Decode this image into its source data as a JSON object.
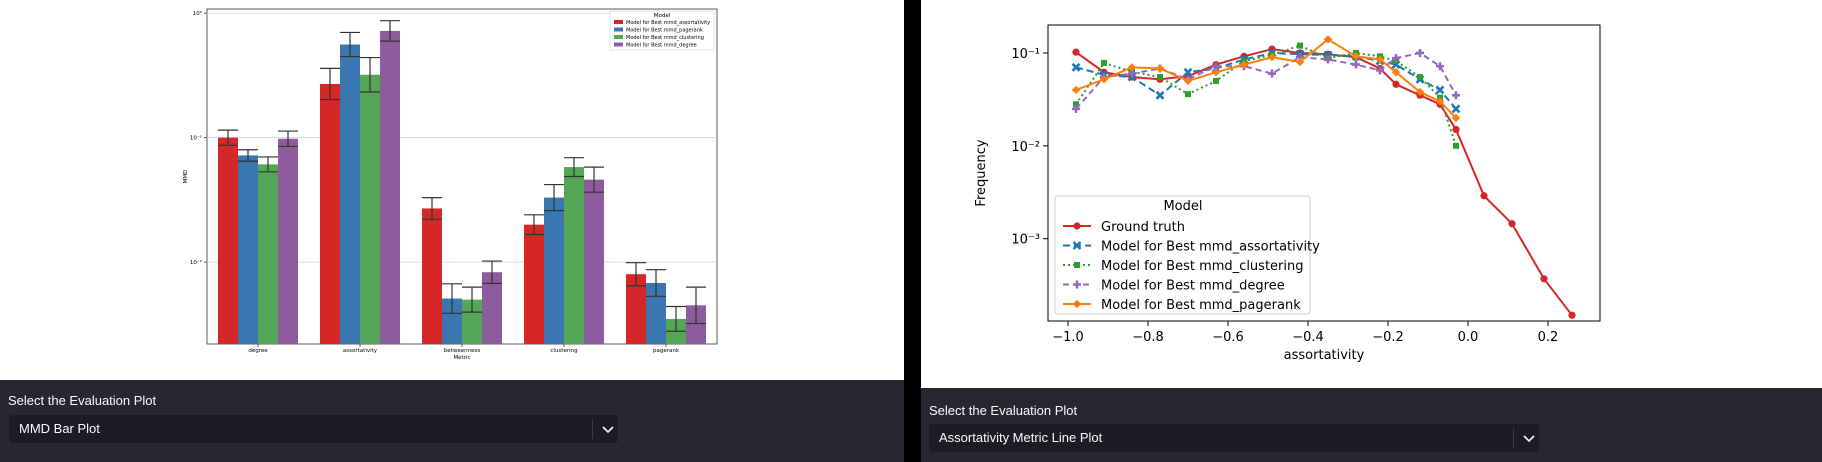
{
  "left_panel": {
    "select_label": "Select the Evaluation Plot",
    "select_value": "MMD Bar Plot"
  },
  "right_panel": {
    "select_label": "Select the Evaluation Plot",
    "select_value": "Assortativity Metric Line Plot"
  },
  "colors": {
    "background": "#262730",
    "select_bg": "#1b1c24",
    "text": "#fafafa",
    "red": "#d62728",
    "blue": "#1f77b4",
    "green": "#2ca02c",
    "purple": "#9467bd",
    "orange": "#ff7f0e"
  },
  "chart_data": [
    {
      "type": "bar",
      "scale": "log",
      "xlabel": "Metric",
      "ylabel": "MMD",
      "categories": [
        "degree",
        "assortativity",
        "betweenness",
        "clustering",
        "pagerank"
      ],
      "yticks": [
        {
          "label": "10⁻²",
          "value": 0.01
        },
        {
          "label": "10⁻¹",
          "value": 0.1
        },
        {
          "label": "10⁰",
          "value": 1
        }
      ],
      "legend": {
        "title": "Model",
        "position": "top-right"
      },
      "series": [
        {
          "name": "Model for Best mmd_assortativity",
          "color": "#d62728",
          "values": [
            0.1,
            0.27,
            0.027,
            0.02,
            0.008
          ],
          "errors": [
            0.115,
            0.36,
            0.033,
            0.024,
            0.0099
          ]
        },
        {
          "name": "Model for Best mmd_pagerank",
          "color": "#3a77b0",
          "values": [
            0.072,
            0.56,
            0.0051,
            0.033,
            0.0068
          ],
          "errors": [
            0.08,
            0.7,
            0.0067,
            0.042,
            0.0087
          ]
        },
        {
          "name": "Model for Best mmd_clustering",
          "color": "#55a657",
          "values": [
            0.061,
            0.32,
            0.005,
            0.058,
            0.0035
          ],
          "errors": [
            0.07,
            0.44,
            0.0063,
            0.069,
            0.0044
          ]
        },
        {
          "name": "Model for Best mmd_degree",
          "color": "#8e5b9e",
          "values": [
            0.098,
            0.72,
            0.0083,
            0.046,
            0.0045
          ],
          "errors": [
            0.113,
            0.87,
            0.0102,
            0.058,
            0.0063
          ]
        }
      ]
    },
    {
      "type": "line",
      "scale": "log-y",
      "xlabel": "assortativity",
      "ylabel": "Frequency",
      "xlim": [
        -1.05,
        0.33
      ],
      "xticks": [
        {
          "label": "−1.0",
          "value": -1.0
        },
        {
          "label": "−0.8",
          "value": -0.8
        },
        {
          "label": "−0.6",
          "value": -0.6
        },
        {
          "label": "−0.4",
          "value": -0.4
        },
        {
          "label": "−0.2",
          "value": -0.2
        },
        {
          "label": "0.0",
          "value": 0.0
        },
        {
          "label": "0.2",
          "value": 0.2
        }
      ],
      "yticks": [
        {
          "label": "10⁻¹",
          "value": 0.1
        },
        {
          "label": "10⁻²",
          "value": 0.01
        },
        {
          "label": "10⁻³",
          "value": 0.001
        }
      ],
      "legend": {
        "title": "Model",
        "position": "lower-left"
      },
      "series": [
        {
          "name": "Ground truth",
          "color": "#d62728",
          "marker": "circle",
          "dash": "",
          "points": [
            [
              -0.98,
              0.102
            ],
            [
              -0.91,
              0.062
            ],
            [
              -0.84,
              0.055
            ],
            [
              -0.77,
              0.052
            ],
            [
              -0.7,
              0.056
            ],
            [
              -0.63,
              0.075
            ],
            [
              -0.56,
              0.092
            ],
            [
              -0.49,
              0.11
            ],
            [
              -0.42,
              0.1
            ],
            [
              -0.35,
              0.097
            ],
            [
              -0.28,
              0.09
            ],
            [
              -0.22,
              0.068
            ],
            [
              -0.18,
              0.046
            ],
            [
              -0.12,
              0.035
            ],
            [
              -0.07,
              0.028
            ],
            [
              -0.03,
              0.015
            ],
            [
              0.04,
              0.0029
            ],
            [
              0.11,
              0.00145
            ],
            [
              0.19,
              0.00037
            ],
            [
              0.26,
              0.00015
            ]
          ]
        },
        {
          "name": "Model for Best mmd_assortativity",
          "color": "#1f77b4",
          "marker": "x",
          "dash": "7,4",
          "points": [
            [
              -0.98,
              0.07
            ],
            [
              -0.91,
              0.058
            ],
            [
              -0.84,
              0.055
            ],
            [
              -0.77,
              0.035
            ],
            [
              -0.7,
              0.062
            ],
            [
              -0.63,
              0.068
            ],
            [
              -0.56,
              0.085
            ],
            [
              -0.49,
              0.1
            ],
            [
              -0.42,
              0.097
            ],
            [
              -0.35,
              0.095
            ],
            [
              -0.28,
              0.092
            ],
            [
              -0.22,
              0.082
            ],
            [
              -0.18,
              0.075
            ],
            [
              -0.12,
              0.052
            ],
            [
              -0.07,
              0.04
            ],
            [
              -0.03,
              0.025
            ]
          ]
        },
        {
          "name": "Model for Best mmd_clustering",
          "color": "#2ca02c",
          "marker": "square",
          "dash": "2,3",
          "points": [
            [
              -0.98,
              0.028
            ],
            [
              -0.91,
              0.078
            ],
            [
              -0.84,
              0.063
            ],
            [
              -0.77,
              0.055
            ],
            [
              -0.7,
              0.036
            ],
            [
              -0.63,
              0.05
            ],
            [
              -0.56,
              0.082
            ],
            [
              -0.49,
              0.095
            ],
            [
              -0.42,
              0.12
            ],
            [
              -0.35,
              0.088
            ],
            [
              -0.28,
              0.1
            ],
            [
              -0.22,
              0.092
            ],
            [
              -0.18,
              0.082
            ],
            [
              -0.12,
              0.055
            ],
            [
              -0.07,
              0.033
            ],
            [
              -0.03,
              0.01
            ]
          ]
        },
        {
          "name": "Model for Best mmd_degree",
          "color": "#9467bd",
          "marker": "plus",
          "dash": "6,4",
          "points": [
            [
              -0.98,
              0.025
            ],
            [
              -0.91,
              0.055
            ],
            [
              -0.84,
              0.06
            ],
            [
              -0.77,
              0.068
            ],
            [
              -0.7,
              0.052
            ],
            [
              -0.63,
              0.072
            ],
            [
              -0.56,
              0.072
            ],
            [
              -0.49,
              0.06
            ],
            [
              -0.42,
              0.09
            ],
            [
              -0.35,
              0.085
            ],
            [
              -0.28,
              0.075
            ],
            [
              -0.22,
              0.065
            ],
            [
              -0.18,
              0.088
            ],
            [
              -0.12,
              0.1
            ],
            [
              -0.07,
              0.072
            ],
            [
              -0.03,
              0.035
            ]
          ]
        },
        {
          "name": "Model for Best mmd_pagerank",
          "color": "#ff7f0e",
          "marker": "diamond",
          "dash": "",
          "points": [
            [
              -0.98,
              0.04
            ],
            [
              -0.91,
              0.052
            ],
            [
              -0.84,
              0.07
            ],
            [
              -0.77,
              0.068
            ],
            [
              -0.7,
              0.05
            ],
            [
              -0.63,
              0.062
            ],
            [
              -0.56,
              0.075
            ],
            [
              -0.49,
              0.09
            ],
            [
              -0.42,
              0.08
            ],
            [
              -0.35,
              0.14
            ],
            [
              -0.28,
              0.092
            ],
            [
              -0.22,
              0.085
            ],
            [
              -0.18,
              0.062
            ],
            [
              -0.12,
              0.038
            ],
            [
              -0.07,
              0.03
            ],
            [
              -0.03,
              0.02
            ]
          ]
        }
      ]
    }
  ]
}
